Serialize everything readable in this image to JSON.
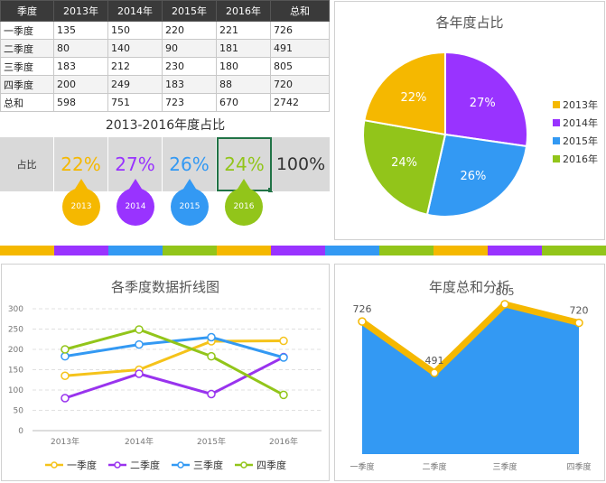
{
  "table": {
    "headers": [
      "季度",
      "2013年",
      "2014年",
      "2015年",
      "2016年",
      "总和"
    ],
    "rows": [
      [
        "一季度",
        "135",
        "150",
        "220",
        "221",
        "726"
      ],
      [
        "二季度",
        "80",
        "140",
        "90",
        "181",
        "491"
      ],
      [
        "三季度",
        "183",
        "212",
        "230",
        "180",
        "805"
      ],
      [
        "四季度",
        "200",
        "249",
        "183",
        "88",
        "720"
      ],
      [
        "总和",
        "598",
        "751",
        "723",
        "670",
        "2742"
      ]
    ]
  },
  "pct_section": {
    "title": "2013-2016年度占比",
    "label": "占比",
    "values": [
      "22%",
      "27%",
      "26%",
      "24%"
    ],
    "total": "100%",
    "drops": [
      "2013",
      "2014",
      "2015",
      "2016"
    ]
  },
  "colors": {
    "y2013": "#f5b800",
    "y2014": "#9933ff",
    "y2015": "#3399f3",
    "y2016": "#92c51a",
    "q1": "#f5c31a",
    "q2": "#9933ee",
    "q3": "#3399f3",
    "q4": "#92c51a",
    "area": "#3399f3",
    "areaLine": "#f5b800"
  },
  "chart_data": [
    {
      "type": "pie",
      "title": "各年度占比",
      "categories": [
        "2013年",
        "2014年",
        "2015年",
        "2016年"
      ],
      "values": [
        22,
        27,
        26,
        24
      ],
      "labels": [
        "22%",
        "27%",
        "26%",
        "24%"
      ],
      "legend": "right"
    },
    {
      "type": "line",
      "title": "各季度数据折线图",
      "categories": [
        "2013年",
        "2014年",
        "2015年",
        "2016年"
      ],
      "yticks": [
        "0",
        "50",
        "100",
        "150",
        "200",
        "250",
        "300"
      ],
      "ylim": [
        0,
        300
      ],
      "series": [
        {
          "name": "一季度",
          "values": [
            135,
            150,
            220,
            221
          ]
        },
        {
          "name": "二季度",
          "values": [
            80,
            140,
            90,
            181
          ]
        },
        {
          "name": "三季度",
          "values": [
            183,
            212,
            230,
            180
          ]
        },
        {
          "name": "四季度",
          "values": [
            200,
            249,
            183,
            88
          ]
        }
      ],
      "legend": "bottom"
    },
    {
      "type": "area",
      "title": "年度总和分析",
      "categories": [
        "一季度",
        "二季度",
        "三季度",
        "四季度"
      ],
      "values": [
        726,
        491,
        805,
        720
      ],
      "labels": [
        "726",
        "491",
        "805",
        "720"
      ]
    }
  ]
}
